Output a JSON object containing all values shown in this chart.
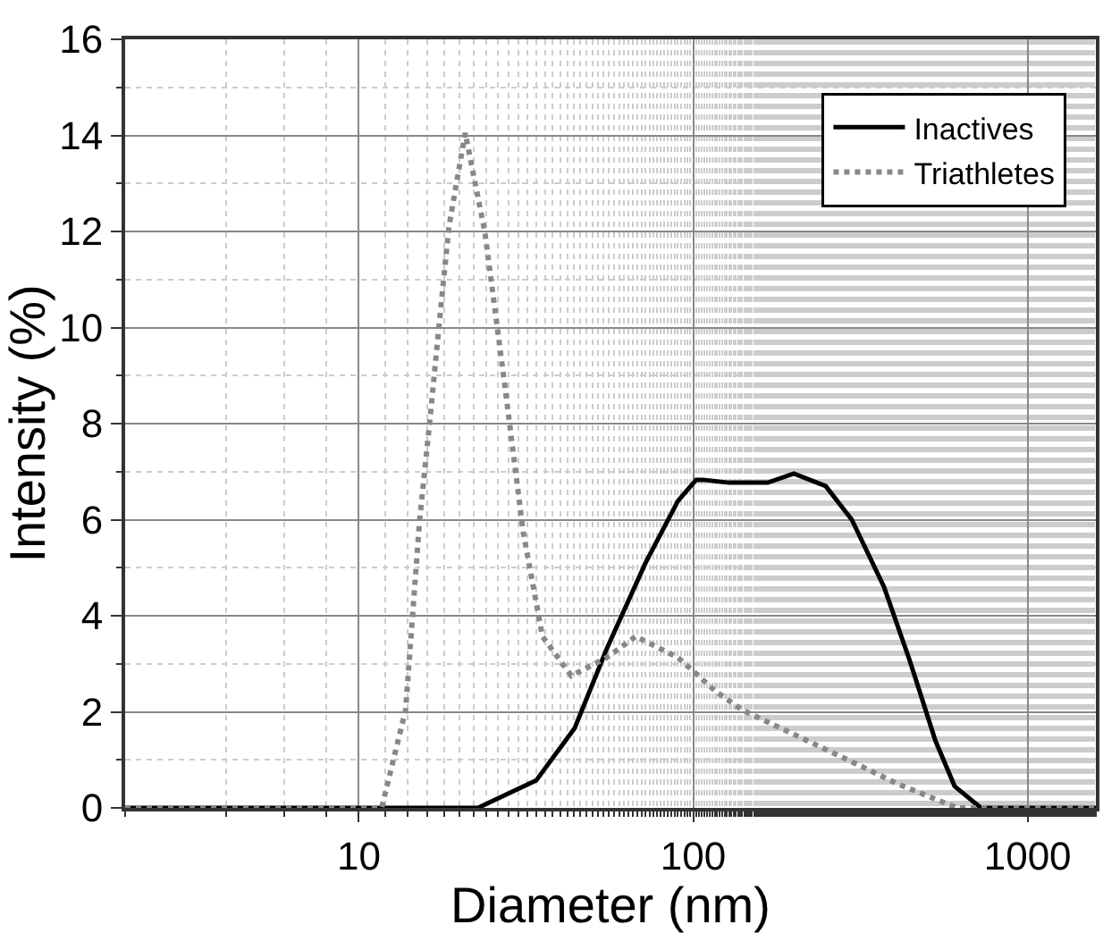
{
  "chart_data": {
    "type": "line",
    "xlabel": "Diameter (nm)",
    "ylabel": "Intensity (%)",
    "log": "x",
    "xlim": [
      2,
      1600
    ],
    "xticks": [
      10,
      100,
      1000
    ],
    "ylim": [
      0,
      16
    ],
    "yticks": [
      0,
      2,
      4,
      6,
      8,
      10,
      12,
      14,
      16
    ],
    "grid": true,
    "legend": "top right",
    "marker": "none",
    "series": [
      {
        "name": "Inactives",
        "color": "#000000",
        "line_style": "solid",
        "x": [
          2,
          22.7,
          33.9,
          44.2,
          55.2,
          72,
          90,
          102,
          107,
          128,
          167,
          200,
          249,
          298,
          372,
          444,
          530,
          605,
          725,
          1600
        ],
        "values": [
          0,
          0,
          0.57,
          1.66,
          3.32,
          5.1,
          6.39,
          6.83,
          6.83,
          6.77,
          6.77,
          6.96,
          6.7,
          6.0,
          4.6,
          3.07,
          1.4,
          0.45,
          0,
          0
        ]
      },
      {
        "name": "Triathletes",
        "color": "#888888",
        "line_style": "dotted",
        "x": [
          2,
          11.7,
          13.8,
          15.2,
          16.3,
          17.4,
          18.6,
          20.8,
          23.8,
          27.2,
          31,
          35.4,
          43.2,
          55.2,
          67.3,
          90,
          117,
          140,
          298,
          406,
          580,
          620,
          1600
        ],
        "values": [
          0,
          0,
          2.04,
          6.0,
          8.05,
          10.1,
          12.1,
          14.05,
          12.0,
          8.9,
          5.75,
          3.57,
          2.75,
          3.13,
          3.57,
          3.13,
          2.42,
          2.04,
          0.96,
          0.51,
          0.07,
          0,
          0
        ]
      }
    ]
  }
}
